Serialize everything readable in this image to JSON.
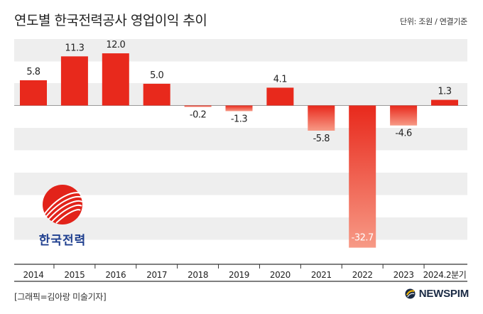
{
  "title": "연도별 한국전력공사 영업이익 추이",
  "unit_note": "단위: 조원 / 연결기준",
  "credit": "[그래픽=김아랑 미술기자]",
  "brand": "NEWSPIM",
  "logo_text": "한국전력",
  "colors": {
    "bar_top": "#e8291c",
    "bar_bottom": "#f79a86",
    "stripe": "#eeeeee",
    "axis": "#333333"
  },
  "chart_data": {
    "type": "bar",
    "categories": [
      "2014",
      "2015",
      "2016",
      "2017",
      "2018",
      "2019",
      "2020",
      "2021",
      "2022",
      "2023",
      "2024.2분기"
    ],
    "values": [
      5.8,
      11.3,
      12.0,
      5.0,
      -0.2,
      -1.3,
      4.1,
      -5.8,
      -32.7,
      -4.6,
      1.3
    ],
    "labels": [
      "5.8",
      "11.3",
      "12.0",
      "5.0",
      "-0.2",
      "-1.3",
      "4.1",
      "-5.8",
      "-32.7",
      "-4.6",
      "1.3"
    ],
    "ylim": [
      -35,
      15
    ],
    "grid": "horizontal bands"
  }
}
